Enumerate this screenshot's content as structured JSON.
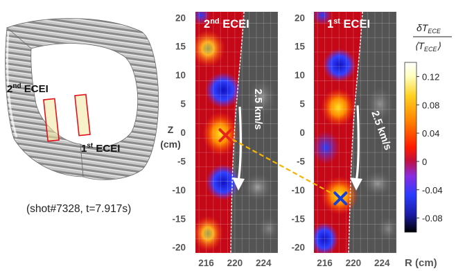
{
  "left_panel": {
    "label_2nd_num": "2",
    "label_2nd_sup": "nd",
    "label_2nd_rest": " ECEI",
    "label_1st_num": "1",
    "label_1st_sup": "st",
    "label_1st_rest": " ECEI",
    "shot_caption": "(shot#7328, t=7.917s)"
  },
  "y_axis": {
    "label_line1": "Z",
    "label_line2": "(cm)",
    "ticks": [
      "20",
      "15",
      "10",
      "5",
      "0",
      "-5",
      "-10",
      "-15",
      "-20"
    ],
    "range": [
      -21,
      21
    ]
  },
  "x_axis": {
    "ticks": [
      "216",
      "220",
      "224"
    ],
    "label": "R (cm)",
    "range": [
      214.5,
      226
    ]
  },
  "panels": [
    {
      "title_num": "2",
      "title_sup": "nd",
      "title_rest": " ECEI",
      "velocity_label": "2.5 km/s",
      "marker": "x",
      "marker_color": "#e8231b",
      "marker_position": {
        "r": 218.7,
        "z": -0.5
      }
    },
    {
      "title_num": "1",
      "title_sup": "st",
      "title_rest": " ECEI",
      "velocity_label": "2.5 km/s",
      "marker": "x",
      "marker_color": "#1b3fd6",
      "marker_position": {
        "r": 218.2,
        "z": -11.5
      }
    }
  ],
  "colorbar": {
    "title_numerator": "δT",
    "title_numerator_sub": "ECE",
    "title_denominator": "⟨T",
    "title_denominator_sub": "ECE",
    "title_denominator_close": "⟩",
    "ticks": [
      "0.12",
      "0.08",
      "0.04",
      "0",
      "-0.04",
      "-0.08"
    ],
    "range": [
      -0.1,
      0.14
    ],
    "colors": [
      "#000000",
      "#1a1aa0",
      "#2a3cff",
      "#8a2be2",
      "#c01040",
      "#ff1a00",
      "#ff8000",
      "#ffd020",
      "#ffffc0",
      "#ffffff"
    ]
  },
  "colors": {
    "connector": "#f5b400",
    "highlight_box": "#e3101a",
    "arrow": "#ffffff"
  }
}
